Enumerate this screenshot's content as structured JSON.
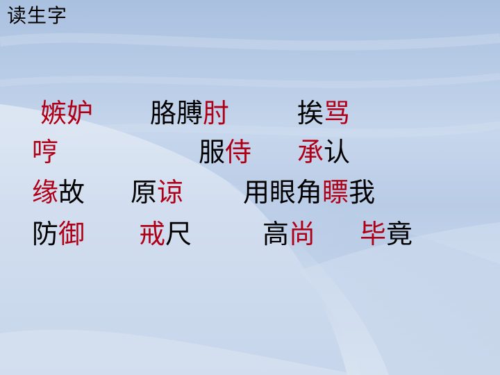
{
  "title": "读生字",
  "colors": {
    "normal": "#000000",
    "highlight": "#b00018"
  },
  "words": [
    {
      "id": "jidu",
      "chars": [
        {
          "c": "嫉",
          "hl": true
        },
        {
          "c": "妒",
          "hl": true
        }
      ]
    },
    {
      "id": "gebozhou",
      "chars": [
        {
          "c": "胳",
          "hl": false
        },
        {
          "c": "膊",
          "hl": false
        },
        {
          "c": "肘",
          "hl": true
        }
      ]
    },
    {
      "id": "aima",
      "chars": [
        {
          "c": "挨",
          "hl": false
        },
        {
          "c": "骂",
          "hl": true
        }
      ]
    },
    {
      "id": "heng",
      "chars": [
        {
          "c": "哼",
          "hl": true
        }
      ]
    },
    {
      "id": "fushi",
      "chars": [
        {
          "c": "服",
          "hl": false
        },
        {
          "c": "侍",
          "hl": true
        }
      ]
    },
    {
      "id": "chengren",
      "chars": [
        {
          "c": "承",
          "hl": true
        },
        {
          "c": "认",
          "hl": false
        }
      ]
    },
    {
      "id": "yuangu",
      "chars": [
        {
          "c": "缘",
          "hl": true
        },
        {
          "c": "故",
          "hl": false
        }
      ]
    },
    {
      "id": "yuanliang",
      "chars": [
        {
          "c": "原",
          "hl": false
        },
        {
          "c": "谅",
          "hl": true
        }
      ]
    },
    {
      "id": "piao",
      "chars": [
        {
          "c": "用",
          "hl": false
        },
        {
          "c": "眼",
          "hl": false
        },
        {
          "c": "角",
          "hl": false
        },
        {
          "c": "瞟",
          "hl": true
        },
        {
          "c": "我",
          "hl": false
        }
      ]
    },
    {
      "id": "fangyu",
      "chars": [
        {
          "c": "防",
          "hl": false
        },
        {
          "c": "御",
          "hl": true
        }
      ]
    },
    {
      "id": "jiechi",
      "chars": [
        {
          "c": "戒",
          "hl": true
        },
        {
          "c": "尺",
          "hl": false
        }
      ]
    },
    {
      "id": "gaoshang",
      "chars": [
        {
          "c": "高",
          "hl": false
        },
        {
          "c": "尚",
          "hl": true
        }
      ]
    },
    {
      "id": "bijing",
      "chars": [
        {
          "c": "毕",
          "hl": true
        },
        {
          "c": "竟",
          "hl": false
        }
      ]
    }
  ]
}
